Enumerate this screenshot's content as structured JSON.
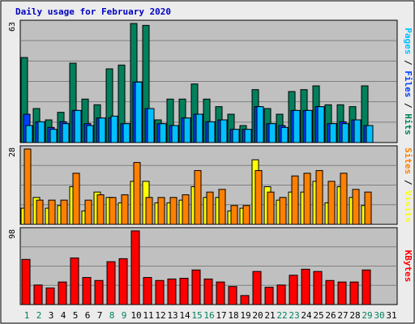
{
  "chart_data": [
    {
      "type": "bar",
      "title": "Daily usage for February 2020",
      "panel": "hits-files-pages",
      "max_label": "63",
      "ylim": [
        0,
        63
      ],
      "axis_label_parts": [
        "Pages",
        "Files",
        "Hits"
      ],
      "axis_label_separator": " / ",
      "categories": [
        "1",
        "2",
        "3",
        "4",
        "5",
        "6",
        "7",
        "8",
        "9",
        "10",
        "11",
        "12",
        "13",
        "14",
        "15",
        "16",
        "17",
        "18",
        "19",
        "20",
        "21",
        "22",
        "23",
        "24",
        "25",
        "26",
        "27",
        "28",
        "29",
        "30",
        "31"
      ],
      "series": [
        {
          "name": "Hits",
          "color": "#00805c",
          "values": [
            45,
            18,
            12,
            16,
            42,
            23,
            20,
            39,
            41,
            63,
            62,
            12,
            23,
            23,
            31,
            23,
            19,
            15,
            9,
            28,
            18,
            15,
            27,
            28,
            30,
            20,
            20,
            19,
            30,
            null,
            null
          ]
        },
        {
          "name": "Files",
          "color": "#0040ff",
          "values": [
            15,
            11,
            8,
            11,
            17,
            10,
            13,
            13,
            10,
            32,
            18,
            10,
            9,
            13,
            15,
            11,
            12,
            7,
            7,
            19,
            10,
            9,
            17,
            17,
            19,
            10,
            11,
            12,
            9,
            null,
            null
          ]
        },
        {
          "name": "Pages",
          "color": "#00c0ff",
          "values": [
            9,
            11,
            7,
            10,
            17,
            9,
            13,
            14,
            10,
            32,
            18,
            10,
            9,
            13,
            15,
            11,
            12,
            7,
            7,
            19,
            10,
            8,
            17,
            17,
            19,
            10,
            10,
            12,
            9,
            null,
            null
          ]
        }
      ]
    },
    {
      "type": "bar",
      "panel": "visits-sites",
      "max_label": "28",
      "ylim": [
        0,
        28
      ],
      "axis_label_parts": [
        "Sites",
        "Visits"
      ],
      "axis_label_separator": " / ",
      "categories": [
        "1",
        "2",
        "3",
        "4",
        "5",
        "6",
        "7",
        "8",
        "9",
        "10",
        "11",
        "12",
        "13",
        "14",
        "15",
        "16",
        "17",
        "18",
        "19",
        "20",
        "21",
        "22",
        "23",
        "24",
        "25",
        "26",
        "27",
        "28",
        "29",
        "30",
        "31"
      ],
      "series": [
        {
          "name": "Visits",
          "color": "#ffff00",
          "values": [
            6,
            10,
            6,
            7,
            14,
            5,
            12,
            10,
            8,
            16,
            16,
            8,
            8,
            9,
            14,
            10,
            10,
            5,
            6,
            24,
            14,
            9,
            12,
            12,
            16,
            8,
            14,
            10,
            7,
            null,
            null
          ]
        },
        {
          "name": "Sites",
          "color": "#ff8000",
          "values": [
            28,
            9,
            9,
            9,
            19,
            9,
            11,
            10,
            11,
            23,
            10,
            10,
            10,
            11,
            20,
            12,
            13,
            7,
            7,
            20,
            12,
            10,
            18,
            19,
            20,
            16,
            19,
            13,
            12,
            null,
            null
          ]
        }
      ]
    },
    {
      "type": "bar",
      "panel": "kbytes",
      "max_label": "98",
      "ylim": [
        0,
        98
      ],
      "axis_label_parts": [
        "KBytes"
      ],
      "axis_label_separator": "",
      "categories": [
        "1",
        "2",
        "3",
        "4",
        "5",
        "6",
        "7",
        "8",
        "9",
        "10",
        "11",
        "12",
        "13",
        "14",
        "15",
        "16",
        "17",
        "18",
        "19",
        "20",
        "21",
        "22",
        "23",
        "24",
        "25",
        "26",
        "27",
        "28",
        "29",
        "30",
        "31"
      ],
      "series": [
        {
          "name": "KBytes",
          "color": "#ff0000",
          "values": [
            60,
            26,
            22,
            30,
            62,
            36,
            32,
            57,
            61,
            98,
            36,
            32,
            34,
            35,
            46,
            34,
            30,
            24,
            12,
            44,
            23,
            26,
            39,
            47,
            44,
            32,
            30,
            30,
            46,
            null,
            null
          ]
        }
      ]
    }
  ],
  "colors": {
    "page_bg": "#ececec",
    "plot_bg": "#c0c0c0",
    "gridline": "#808080",
    "title": "#0000c0",
    "text": "#000000",
    "weekend_label": "#00805c"
  },
  "x_axis": {
    "labels": [
      "1",
      "2",
      "3",
      "4",
      "5",
      "6",
      "7",
      "8",
      "9",
      "10",
      "11",
      "12",
      "13",
      "14",
      "15",
      "16",
      "17",
      "18",
      "19",
      "20",
      "21",
      "22",
      "23",
      "24",
      "25",
      "26",
      "27",
      "28",
      "29",
      "30",
      "31"
    ],
    "weekend_days": [
      "1",
      "2",
      "8",
      "9",
      "15",
      "16",
      "22",
      "23",
      "29",
      "30"
    ]
  }
}
